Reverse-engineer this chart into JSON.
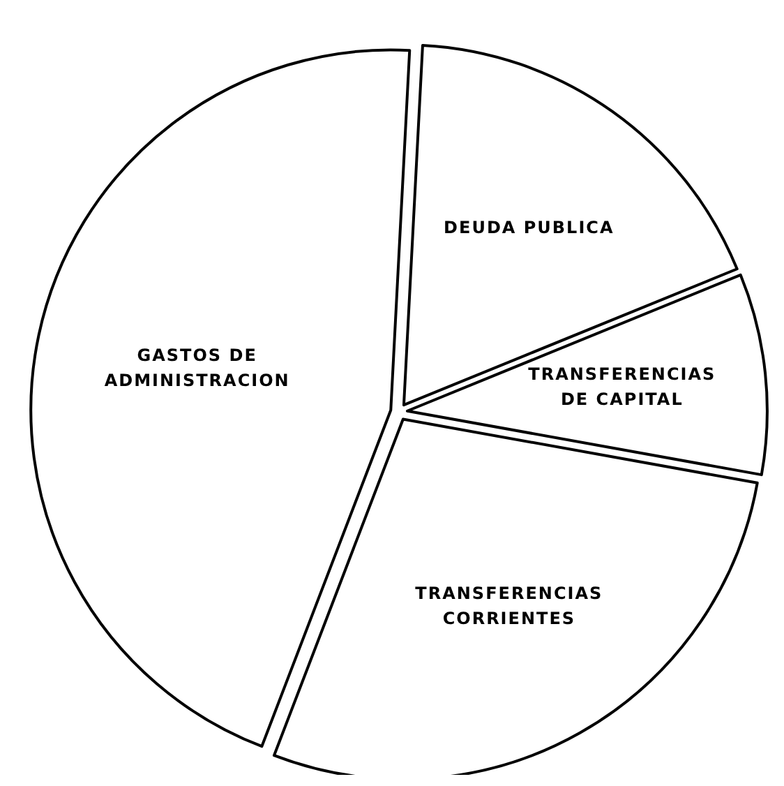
{
  "chart_data": {
    "type": "pie",
    "categories": [
      "DEUDA PUBLICA",
      "TRANSFERENCIAS DE CAPITAL",
      "TRANSFERENCIAS CORRIENTES",
      "GASTOS DE ADMINISTRACION"
    ],
    "values": [
      18,
      9,
      28,
      45
    ],
    "colors": [
      "#ffffff",
      "#ffffff",
      "#ffffff",
      "#ffffff"
    ]
  }
}
